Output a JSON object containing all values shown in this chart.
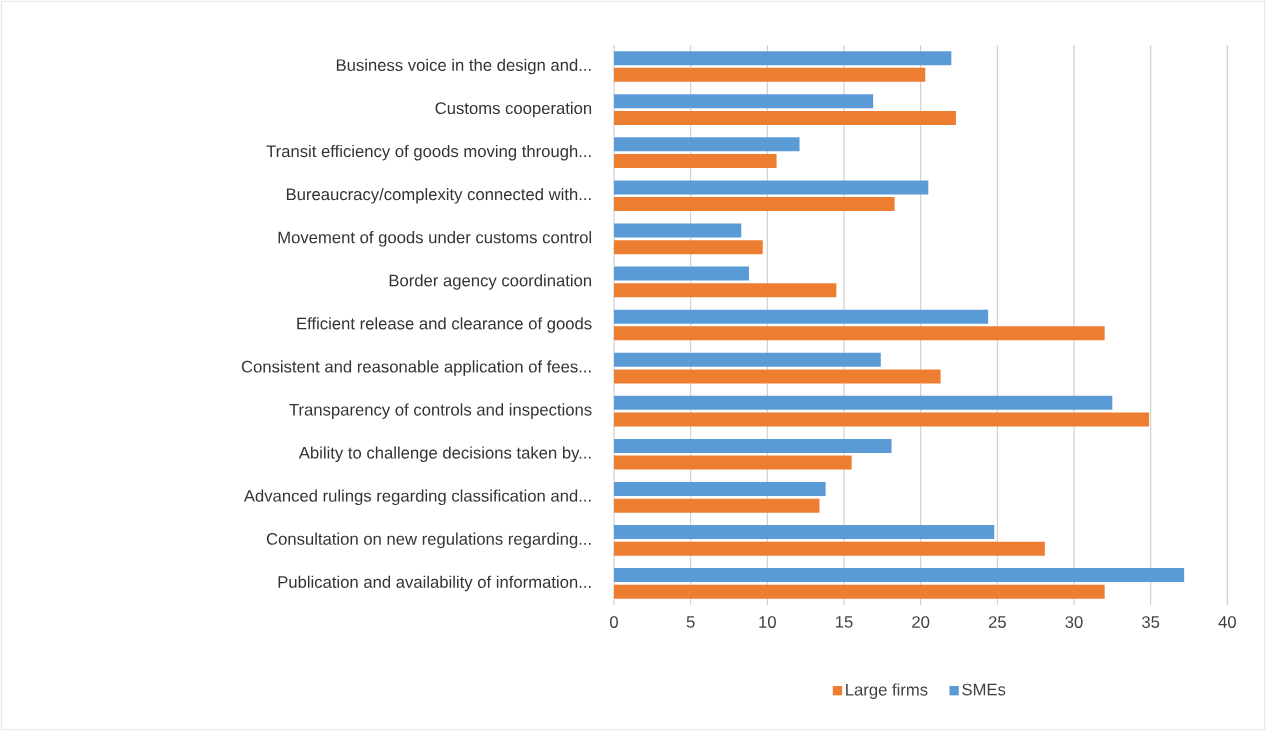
{
  "chart_data": {
    "type": "bar",
    "orientation": "horizontal",
    "categories": [
      "Business voice in the design and...",
      "Customs cooperation",
      "Transit efficiency of goods moving through...",
      "Bureaucracy/complexity connected with...",
      "Movement of goods under customs control",
      "Border agency coordination",
      "Efficient release and clearance of goods",
      "Consistent and reasonable application of fees...",
      "Transparency of controls and inspections",
      "Ability to challenge decisions taken by...",
      "Advanced rulings regarding classification and...",
      "Consultation on new regulations regarding...",
      "Publication and availability of information..."
    ],
    "series": [
      {
        "name": "Large firms",
        "color": "#ed7d31",
        "values": [
          20.3,
          22.3,
          10.6,
          18.3,
          9.7,
          14.5,
          32.0,
          21.3,
          34.9,
          15.5,
          13.4,
          28.1,
          32.0
        ]
      },
      {
        "name": "SMEs",
        "color": "#5b9bd5",
        "values": [
          22.0,
          16.9,
          12.1,
          20.5,
          8.3,
          8.8,
          24.4,
          17.4,
          32.5,
          18.1,
          13.8,
          24.8,
          37.2
        ]
      }
    ],
    "xlim": [
      0,
      40
    ],
    "xticks": [
      0,
      5,
      10,
      15,
      20,
      25,
      30,
      35,
      40
    ],
    "grid": "x",
    "legend": "bottom"
  }
}
